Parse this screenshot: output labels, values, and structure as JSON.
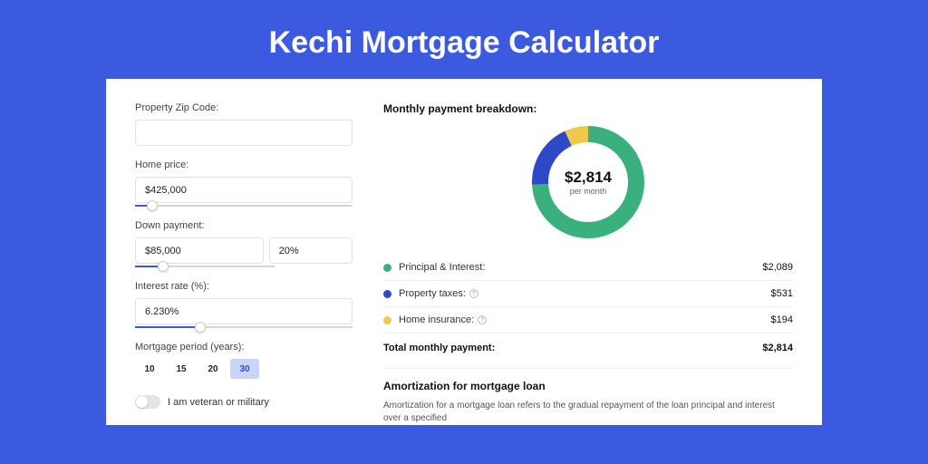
{
  "page": {
    "title": "Kechi Mortgage Calculator",
    "bg_color": "#3b5ae0"
  },
  "form": {
    "zip": {
      "label": "Property Zip Code:",
      "value": ""
    },
    "home_price": {
      "label": "Home price:",
      "value": "$425,000",
      "slider_pct": 8
    },
    "down_payment": {
      "label": "Down payment:",
      "value": "$85,000",
      "pct_value": "20%",
      "slider_pct": 20
    },
    "interest_rate": {
      "label": "Interest rate (%):",
      "value": "6.230%",
      "slider_pct": 30
    },
    "mortgage_period": {
      "label": "Mortgage period (years):",
      "options": [
        "10",
        "15",
        "20",
        "30"
      ],
      "selected_index": 3
    },
    "veteran": {
      "label": "I am veteran or military",
      "checked": false
    }
  },
  "breakdown": {
    "title": "Monthly payment breakdown:",
    "total_amount": "$2,814",
    "total_sub": "per month",
    "donut": {
      "type": "donut",
      "size": 124,
      "thickness": 18,
      "segments": [
        {
          "label": "Principal & Interest:",
          "value": "$2,089",
          "pct": 74.2,
          "color": "#3bb07f"
        },
        {
          "label": "Property taxes:",
          "value": "$531",
          "pct": 18.9,
          "color": "#2d49c6",
          "info": true
        },
        {
          "label": "Home insurance:",
          "value": "$194",
          "pct": 6.9,
          "color": "#f0c94a",
          "info": true
        }
      ]
    },
    "total_row": {
      "label": "Total monthly payment:",
      "value": "$2,814"
    }
  },
  "amortization": {
    "title": "Amortization for mortgage loan",
    "text": "Amortization for a mortgage loan refers to the gradual repayment of the loan principal and interest over a specified"
  }
}
